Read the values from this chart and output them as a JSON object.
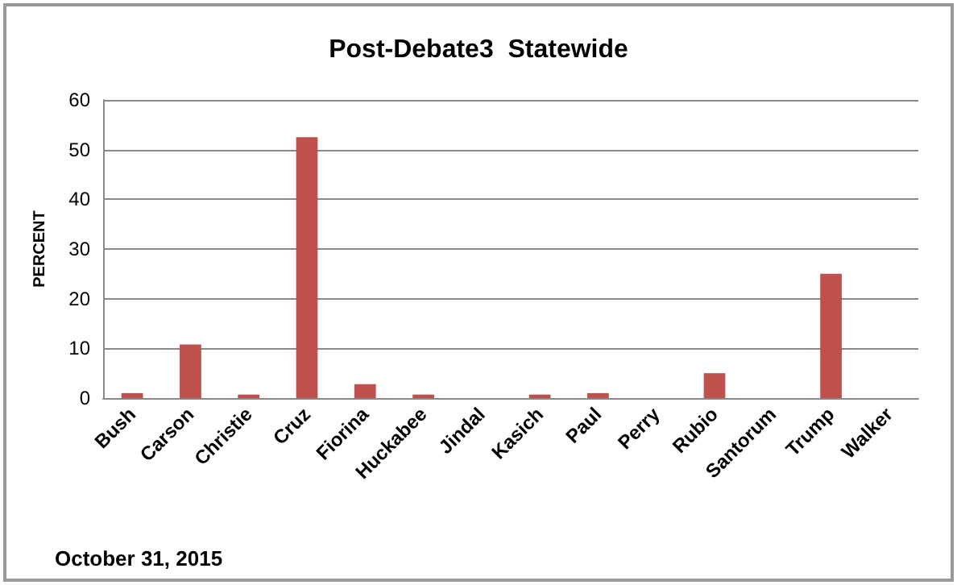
{
  "chart_data": {
    "type": "bar",
    "title": "Post-Debate3  Statewide",
    "ylabel": "PERCENT",
    "categories": [
      "Bush",
      "Carson",
      "Christie",
      "Cruz",
      "Fiorina",
      "Huckabee",
      "Jindal",
      "Kasich",
      "Paul",
      "Perry",
      "Rubio",
      "Santorum",
      "Trump",
      "Walker"
    ],
    "values": [
      1,
      10.8,
      0.7,
      52.5,
      2.8,
      0.7,
      0,
      0.7,
      1,
      0,
      5,
      0,
      25,
      0
    ],
    "color": "#c0504d",
    "ylim": [
      0,
      60
    ],
    "yticks": [
      0,
      10,
      20,
      30,
      40,
      50,
      60
    ],
    "grid": "y",
    "annotations": [
      "October 31, 2015"
    ]
  }
}
